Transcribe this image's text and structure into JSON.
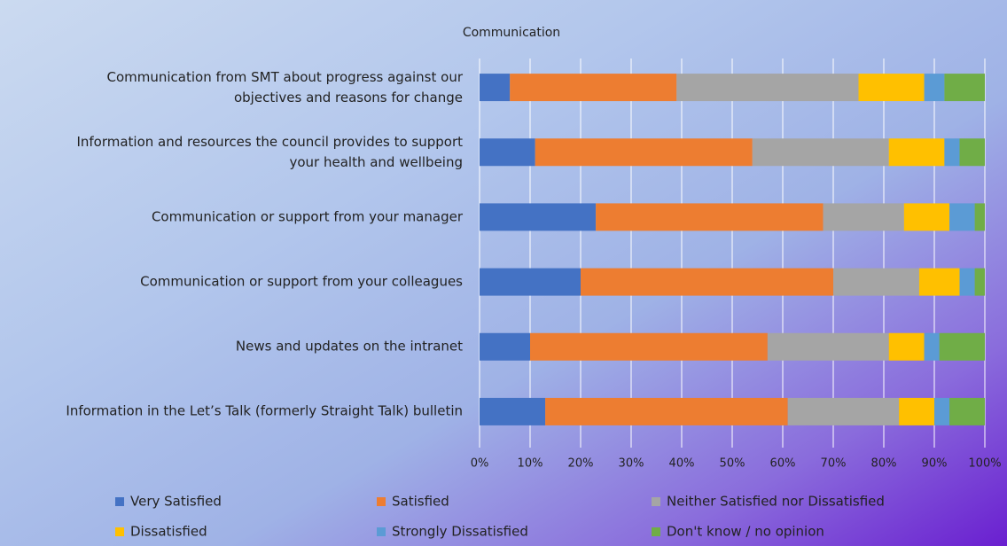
{
  "chart_data": {
    "type": "stacked-bar-horizontal",
    "title": "Communication",
    "categories": [
      "Communication from SMT about progress against our\nobjectives and reasons for change",
      "Information and resources the council provides to support\nyour health and wellbeing",
      "Communication or support from your manager",
      "Communication or support from your colleagues",
      "News and updates on the intranet",
      "Information in the Let’s Talk (formerly Straight Talk) bulletin"
    ],
    "series": [
      {
        "name": "Very Satisfied",
        "color": "#4472c4",
        "values": [
          6,
          11,
          23,
          20,
          10,
          13
        ]
      },
      {
        "name": "Satisfied",
        "color": "#ed7d31",
        "values": [
          33,
          43,
          45,
          50,
          47,
          48
        ]
      },
      {
        "name": "Neither Satisfied nor Dissatisfied",
        "color": "#a5a5a5",
        "values": [
          36,
          27,
          16,
          17,
          24,
          22
        ]
      },
      {
        "name": "Dissatisfied",
        "color": "#ffc000",
        "values": [
          13,
          11,
          9,
          8,
          7,
          7
        ]
      },
      {
        "name": "Strongly Dissatisfied",
        "color": "#5b9bd5",
        "values": [
          4,
          3,
          5,
          3,
          3,
          3
        ]
      },
      {
        "name": "Don't know / no opinion",
        "color": "#70ad47",
        "values": [
          8,
          5,
          2,
          2,
          9,
          7
        ]
      }
    ],
    "xlim": [
      0,
      100
    ],
    "xticks": [
      {
        "value": 0,
        "label": "0%"
      },
      {
        "value": 10,
        "label": "10%"
      },
      {
        "value": 20,
        "label": "20%"
      },
      {
        "value": 30,
        "label": "30%"
      },
      {
        "value": 40,
        "label": "40%"
      },
      {
        "value": 50,
        "label": "50%"
      },
      {
        "value": 60,
        "label": "60%"
      },
      {
        "value": 70,
        "label": "70%"
      },
      {
        "value": 80,
        "label": "80%"
      },
      {
        "value": 90,
        "label": "90%"
      },
      {
        "value": 100,
        "label": "100%"
      }
    ],
    "grid": true
  }
}
